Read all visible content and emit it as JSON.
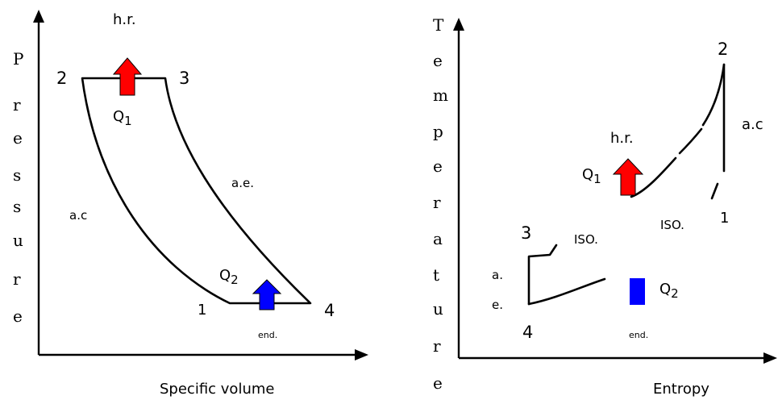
{
  "pv_diagram": {
    "y_axis_letters": [
      "P",
      "r",
      "e",
      "s",
      "s",
      "u",
      "r",
      "e"
    ],
    "x_axis_label": "Specific volume",
    "heat_reject_label": "h.r.",
    "point_1": "1",
    "point_2": "2",
    "point_3": "3",
    "point_4": "4",
    "q1_label": "Q",
    "q1_sub": "1",
    "q2_label": "Q",
    "q2_sub": "2",
    "ae_label": "a.e.",
    "ac_label": "a.c",
    "end_label": "end."
  },
  "ts_diagram": {
    "y_axis_letters": [
      "T",
      "e",
      "m",
      "p",
      "e",
      "r",
      "a",
      "t",
      "u",
      "r",
      "e"
    ],
    "x_axis_label": "Entropy",
    "heat_reject_label": "h.r.",
    "point_1": "1",
    "point_2": "2",
    "point_3": "3",
    "point_4": "4",
    "q1_label": "Q",
    "q1_sub": "1",
    "q2_label": "Q",
    "q2_sub": "2",
    "ac_label": "a.c",
    "iso_upper": "ISO.",
    "iso_lower": "ISO.",
    "a_label": "a.",
    "e_label": "e.",
    "end_label": "end."
  },
  "colors": {
    "q1_arrow": "#ff0000",
    "q2_arrow": "#0000ff",
    "line": "#000000"
  }
}
